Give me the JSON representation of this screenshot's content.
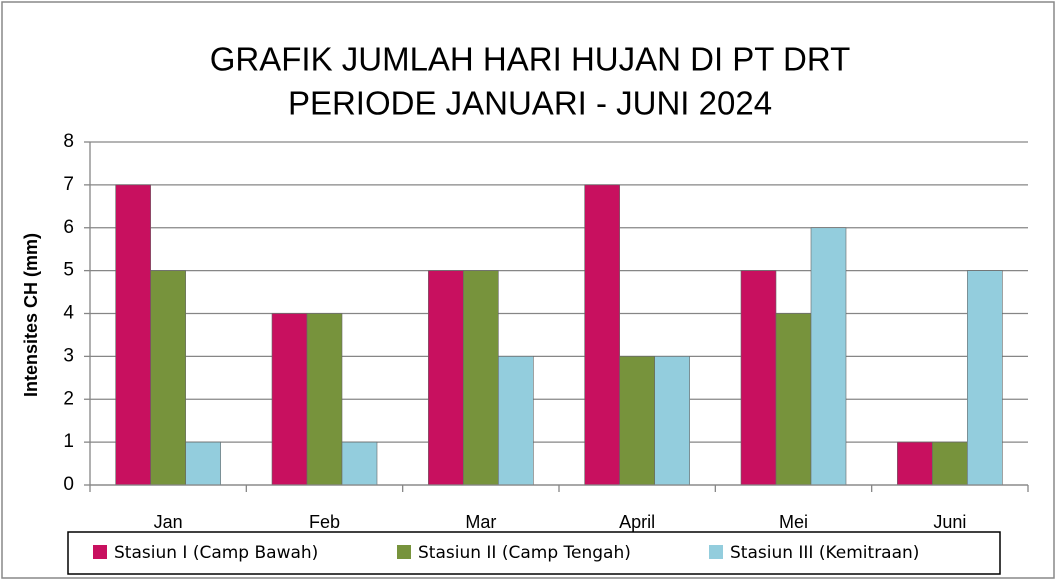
{
  "chart_data": {
    "type": "bar",
    "title": [
      "GRAFIK JUMLAH HARI HUJAN DI PT DRT",
      "PERIODE JANUARI - JUNI 2024"
    ],
    "y_label": "Intensites CH (mm)",
    "categories": [
      "Jan",
      "Feb",
      "Mar",
      "April",
      "Mei",
      "Juni"
    ],
    "series": [
      {
        "name": "Stasiun I (Camp Bawah)",
        "color": "#c8105f",
        "values": [
          7,
          4,
          5,
          7,
          5,
          1
        ]
      },
      {
        "name": "Stasiun II (Camp Tengah)",
        "color": "#77933c",
        "values": [
          5,
          4,
          5,
          3,
          4,
          1
        ]
      },
      {
        "name": "Stasiun III (Kemitraan)",
        "color": "#93cddd",
        "values": [
          1,
          1,
          3,
          3,
          6,
          5
        ]
      }
    ],
    "ylim": [
      0,
      8
    ],
    "yticks": [
      0,
      1,
      2,
      3,
      4,
      5,
      6,
      7,
      8
    ],
    "grid": true,
    "legend": "bottom"
  }
}
